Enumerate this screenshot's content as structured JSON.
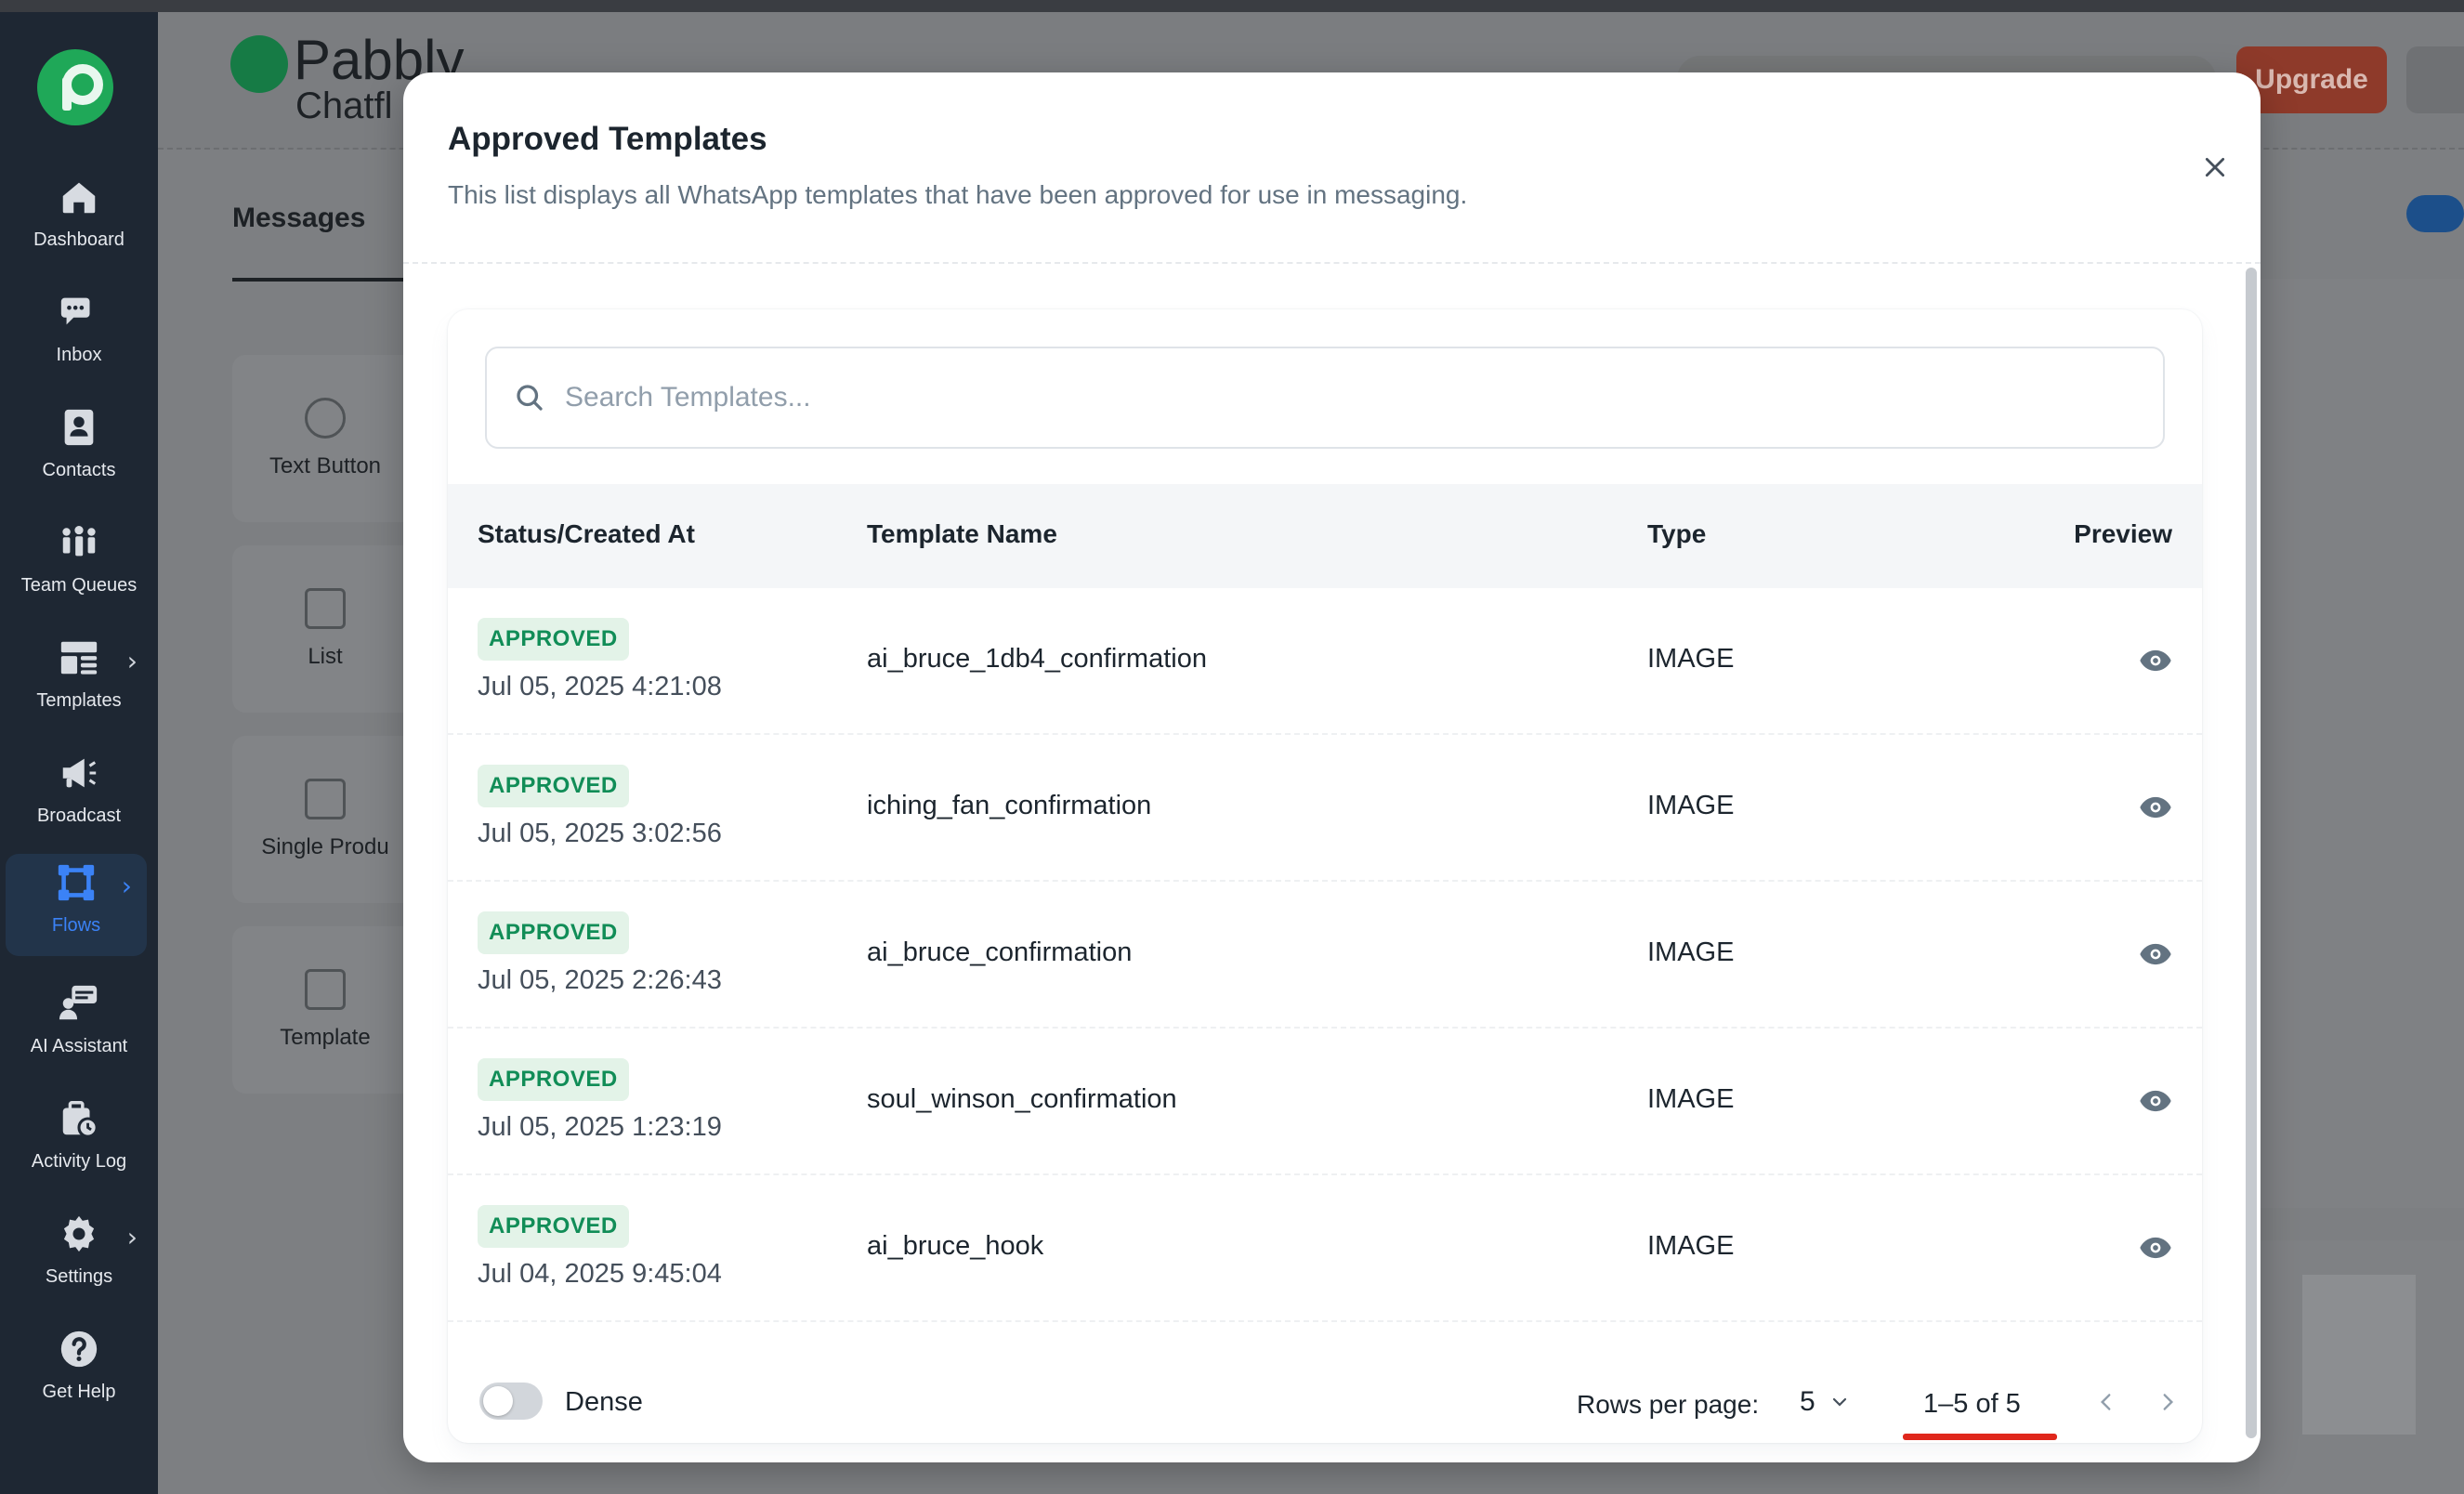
{
  "sidebar": {
    "items": [
      {
        "label": "Dashboard",
        "icon": "home-icon"
      },
      {
        "label": "Inbox",
        "icon": "chat-icon"
      },
      {
        "label": "Contacts",
        "icon": "contacts-icon"
      },
      {
        "label": "Team Queues",
        "icon": "team-icon"
      },
      {
        "label": "Templates",
        "icon": "templates-icon"
      },
      {
        "label": "Broadcast",
        "icon": "megaphone-icon"
      },
      {
        "label": "Flows",
        "icon": "flows-icon"
      },
      {
        "label": "AI Assistant",
        "icon": "ai-assistant-icon"
      },
      {
        "label": "Activity Log",
        "icon": "activity-log-icon"
      },
      {
        "label": "Settings",
        "icon": "gear-icon"
      },
      {
        "label": "Get Help",
        "icon": "help-icon"
      }
    ]
  },
  "header": {
    "brand_name": "Pabbly",
    "brand_sub": "Chatfl",
    "upgrade_label": "Upgrade"
  },
  "background": {
    "tab_label": "Messages",
    "tiles": [
      "Text Button",
      "List",
      "Single Produ",
      "Template"
    ]
  },
  "modal": {
    "title": "Approved Templates",
    "subtitle": "This list displays all WhatsApp templates that have been approved for use in messaging.",
    "search": {
      "placeholder": "Search Templates...",
      "value": ""
    },
    "columns": {
      "status": "Status/Created At",
      "name": "Template Name",
      "type": "Type",
      "preview": "Preview"
    },
    "rows": [
      {
        "status": "APPROVED",
        "created_at": "Jul 05, 2025 4:21:08",
        "name": "ai_bruce_1db4_confirmation",
        "type": "IMAGE"
      },
      {
        "status": "APPROVED",
        "created_at": "Jul 05, 2025 3:02:56",
        "name": "iching_fan_confirmation",
        "type": "IMAGE"
      },
      {
        "status": "APPROVED",
        "created_at": "Jul 05, 2025 2:26:43",
        "name": "ai_bruce_confirmation",
        "type": "IMAGE"
      },
      {
        "status": "APPROVED",
        "created_at": "Jul 05, 2025 1:23:19",
        "name": "soul_winson_confirmation",
        "type": "IMAGE"
      },
      {
        "status": "APPROVED",
        "created_at": "Jul 04, 2025 9:45:04",
        "name": "ai_bruce_hook",
        "type": "IMAGE"
      }
    ],
    "footer": {
      "dense_label": "Dense",
      "dense_on": false,
      "rows_per_page_label": "Rows per page:",
      "rows_per_page_value": "5",
      "range_text": "1–5 of 5"
    }
  },
  "colors": {
    "sidebar_bg": "#1e2733",
    "active_nav": "#3b82f6",
    "badge_bg": "#e3f3e8",
    "badge_text": "#118d57",
    "highlight_underline": "#e0271c",
    "upgrade_bg": "#8e3a2a"
  }
}
